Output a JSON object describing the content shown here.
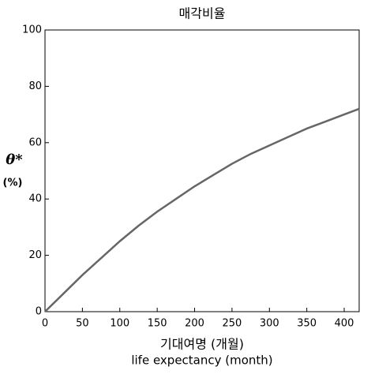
{
  "chart_data": {
    "type": "line",
    "title": "매각비율",
    "ylabel": "θ*",
    "yunit": "(%)",
    "xlabel": "기대여명 (개월)",
    "xlabel_en": "life expectancy (month)",
    "x": [
      0,
      25,
      50,
      75,
      100,
      125,
      150,
      175,
      200,
      225,
      250,
      275,
      300,
      325,
      350,
      375,
      400,
      420
    ],
    "series": [
      {
        "color": "#666666",
        "values": [
          0,
          6.5,
          13,
          19,
          25,
          30.5,
          35.5,
          40,
          44.5,
          48.5,
          52.5,
          56,
          59,
          62,
          65,
          67.5,
          70,
          72
        ]
      }
    ],
    "xlim": [
      0,
      420
    ],
    "xticks": [
      0,
      50,
      100,
      150,
      200,
      250,
      300,
      350,
      400
    ],
    "ylim": [
      0,
      100
    ],
    "yticks": [
      0,
      20,
      40,
      60,
      80,
      100
    ],
    "grid": false
  }
}
